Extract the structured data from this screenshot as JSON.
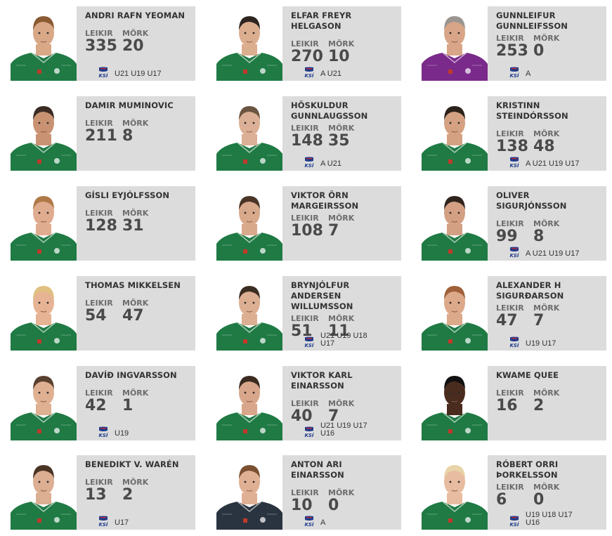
{
  "players": [
    {
      "name": "ANDRI RAFN YEOMAN",
      "leikir_label": "LEIKIR",
      "leikir": "335",
      "mork_label": "MÖRK",
      "mork": "20",
      "teams": "U21 U19 U17",
      "badge": "ksi-icon",
      "shirt": "#1f7a44",
      "skin": "#d9a887",
      "hair": "#8a5a32"
    },
    {
      "name": "ELFAR FREYR HELGASON",
      "leikir_label": "LEIKIR",
      "leikir": "270",
      "mork_label": "MÖRK",
      "mork": "10",
      "teams": "A U21",
      "badge": "ksi-icon",
      "shirt": "#1f7a44",
      "skin": "#dcae90",
      "hair": "#2e2520"
    },
    {
      "name": "GUNNLEIFUR GUNNLEIFSSON",
      "leikir_label": "LEIKIR",
      "leikir": "253",
      "mork_label": "MÖRK",
      "mork": "0",
      "teams": "A",
      "badge": "ksi-icon",
      "shirt": "#7a2a8a",
      "skin": "#d8a588",
      "hair": "#9a9590"
    },
    {
      "name": "DAMIR MUMINOVIC",
      "leikir_label": "LEIKIR",
      "leikir": "211",
      "mork_label": "MÖRK",
      "mork": "8",
      "teams": "",
      "badge": "",
      "shirt": "#1f7a44",
      "skin": "#c99373",
      "hair": "#3a2c24"
    },
    {
      "name": "HÖSKULDUR GUNNLAUGSSON",
      "leikir_label": "LEIKIR",
      "leikir": "148",
      "mork_label": "MÖRK",
      "mork": "35",
      "teams": "A U21",
      "badge": "ksi-icon",
      "shirt": "#1f7a44",
      "skin": "#dcb096",
      "hair": "#6b5440"
    },
    {
      "name": "KRISTINN STEINDÓRSSON",
      "leikir_label": "LEIKIR",
      "leikir": "138",
      "mork_label": "MÖRK",
      "mork": "48",
      "teams": "A U21 U19 U17",
      "badge": "ksi-icon",
      "shirt": "#1f7a44",
      "skin": "#d4a282",
      "hair": "#2c221c"
    },
    {
      "name": "GÍSLI EYJÓLFSSON",
      "leikir_label": "LEIKIR",
      "leikir": "128",
      "mork_label": "MÖRK",
      "mork": "31",
      "teams": "",
      "badge": "",
      "shirt": "#1f7a44",
      "skin": "#e0ac8f",
      "hair": "#b07a48"
    },
    {
      "name": "VIKTOR ÖRN MARGEIRSSON",
      "leikir_label": "LEIKIR",
      "leikir": "108",
      "mork_label": "MÖRK",
      "mork": "7",
      "teams": "",
      "badge": "",
      "shirt": "#1f7a44",
      "skin": "#d9a98c",
      "hair": "#4a3526"
    },
    {
      "name": "OLIVER SIGURJÓNSSON",
      "leikir_label": "LEIKIR",
      "leikir": "99",
      "mork_label": "MÖRK",
      "mork": "8",
      "teams": "A U21 U19 U17",
      "badge": "ksi-icon",
      "shirt": "#1f7a44",
      "skin": "#d3a084",
      "hair": "#2f241d"
    },
    {
      "name": "THOMAS MIKKELSEN",
      "leikir_label": "LEIKIR",
      "leikir": "54",
      "mork_label": "MÖRK",
      "mork": "47",
      "teams": "",
      "badge": "",
      "shirt": "#1f7a44",
      "skin": "#e6b494",
      "hair": "#e0c080"
    },
    {
      "name": "BRYNJÓLFUR ANDERSEN WILLUMSSON",
      "leikir_label": "LEIKIR",
      "leikir": "51",
      "mork_label": "MÖRK",
      "mork": "11",
      "teams": "U21 U19 U18 U17",
      "badge": "ksi-icon",
      "shirt": "#1f7a44",
      "skin": "#dcae92",
      "hair": "#3c2d22"
    },
    {
      "name": "ALEXANDER H SIGURÐARSON",
      "leikir_label": "LEIKIR",
      "leikir": "47",
      "mork_label": "MÖRK",
      "mork": "7",
      "teams": "U19 U17",
      "badge": "ksi-icon",
      "shirt": "#1f7a44",
      "skin": "#dca98a",
      "hair": "#a0603a"
    },
    {
      "name": "DAVÍÐ INGVARSSON",
      "leikir_label": "LEIKIR",
      "leikir": "42",
      "mork_label": "MÖRK",
      "mork": "1",
      "teams": "U19",
      "badge": "ksi-icon",
      "shirt": "#1f7a44",
      "skin": "#e0b092",
      "hair": "#5a4030"
    },
    {
      "name": "VIKTOR KARL EINARSSON",
      "leikir_label": "LEIKIR",
      "leikir": "40",
      "mork_label": "MÖRK",
      "mork": "7",
      "teams": "U21 U19 U17 U16",
      "badge": "ksi-icon",
      "shirt": "#1f7a44",
      "skin": "#d8a68a",
      "hair": "#3a2a20"
    },
    {
      "name": "KWAME QUEE",
      "leikir_label": "LEIKIR",
      "leikir": "16",
      "mork_label": "MÖRK",
      "mork": "2",
      "teams": "",
      "badge": "",
      "shirt": "#1f7a44",
      "skin": "#4a2c1e",
      "hair": "#111111"
    },
    {
      "name": "BENEDIKT V. WARÉN",
      "leikir_label": "LEIKIR",
      "leikir": "13",
      "mork_label": "MÖRK",
      "mork": "2",
      "teams": "U17",
      "badge": "ksi-icon",
      "shirt": "#1f7a44",
      "skin": "#dcae92",
      "hair": "#4a3424"
    },
    {
      "name": "ANTON ARI EINARSSON",
      "leikir_label": "LEIKIR",
      "leikir": "10",
      "mork_label": "MÖRK",
      "mork": "0",
      "teams": "A",
      "badge": "ksi-icon",
      "shirt": "#2a3440",
      "skin": "#e0b094",
      "hair": "#7a5030"
    },
    {
      "name": "RÓBERT ORRI ÞORKELSSON",
      "leikir_label": "LEIKIR",
      "leikir": "6",
      "mork_label": "MÖRK",
      "mork": "0",
      "teams": "U19 U18 U17 U16",
      "badge": "ksi-icon",
      "shirt": "#1f7a44",
      "skin": "#e8bca0",
      "hair": "#e8d4a8"
    }
  ],
  "colors": {
    "card_bg": "#dcdcdc",
    "text": "#333333",
    "label": "#6d6d6d",
    "value": "#4a4a4a",
    "ksi_blue": "#1f3c8c",
    "ksi_red": "#d6232a"
  }
}
